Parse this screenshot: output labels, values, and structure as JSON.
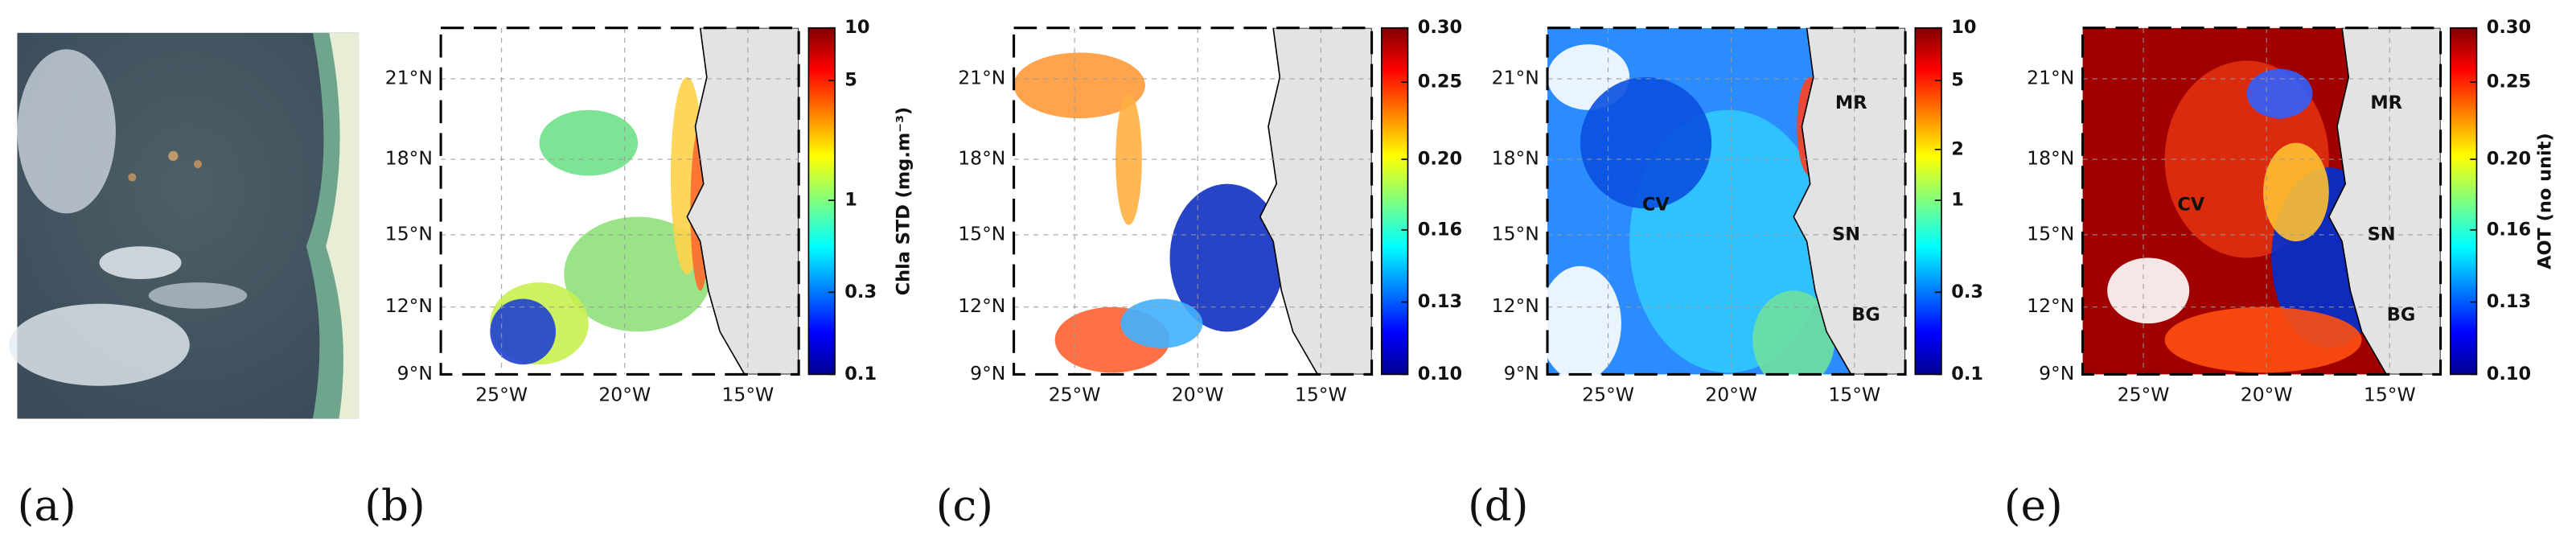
{
  "panels": [
    {
      "label": "(a)"
    },
    {
      "label": "(b)",
      "lat_labels": [
        "21°N",
        "18°N",
        "15°N",
        "12°N",
        "9°N"
      ],
      "lon_labels": [
        "25°W",
        "20°W",
        "15°W"
      ],
      "colorbar": {
        "title": "Chla STD (mg.m⁻³)",
        "ticks": [
          "10",
          "5",
          "1",
          "0.3",
          "0.1"
        ]
      }
    },
    {
      "label": "(c)",
      "lat_labels": [
        "21°N",
        "18°N",
        "15°N",
        "12°N",
        "9°N"
      ],
      "lon_labels": [
        "25°W",
        "20°W",
        "15°W"
      ],
      "colorbar": {
        "ticks": [
          "0.30",
          "0.25",
          "0.20",
          "0.16",
          "0.13",
          "0.10"
        ]
      }
    },
    {
      "label": "(d)",
      "lat_labels": [
        "21°N",
        "18°N",
        "15°N",
        "12°N",
        "9°N"
      ],
      "lon_labels": [
        "25°W",
        "20°W",
        "15°W"
      ],
      "colorbar": {
        "ticks": [
          "10",
          "5",
          "2",
          "1",
          "0.3",
          "0.1"
        ]
      },
      "annotations": [
        "MR",
        "CV",
        "SN",
        "BG"
      ]
    },
    {
      "label": "(e)",
      "lat_labels": [
        "21°N",
        "18°N",
        "15°N",
        "12°N",
        "9°N"
      ],
      "lon_labels": [
        "25°W",
        "20°W",
        "15°W"
      ],
      "colorbar": {
        "title": "AOT (no unit)",
        "ticks": [
          "0.30",
          "0.25",
          "0.20",
          "0.16",
          "0.13",
          "0.10"
        ]
      },
      "annotations": [
        "MR",
        "CV",
        "SN",
        "BG"
      ]
    }
  ]
}
